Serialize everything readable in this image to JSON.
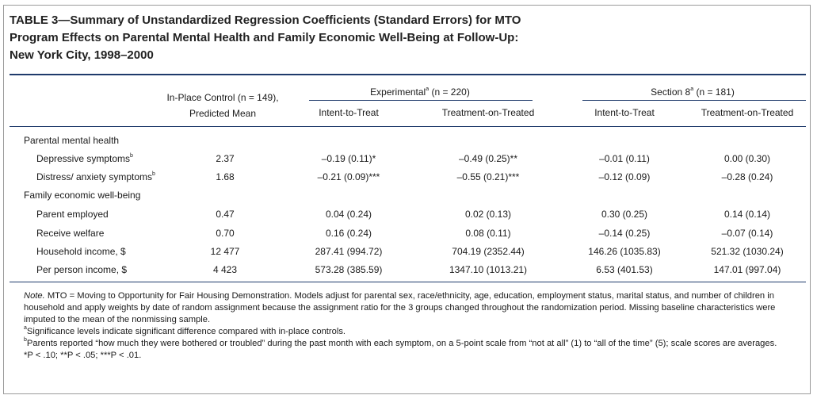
{
  "title": {
    "line1": "TABLE 3—Summary of Unstandardized Regression Coefficients (Standard Errors) for MTO",
    "line2": "Program Effects on Parental Mental Health and Family Economic Well-Being at Follow-Up:",
    "line3": "New York City, 1998–2000"
  },
  "header": {
    "control_line1": "In-Place Control (n = 149),",
    "control_line2": "Predicted Mean",
    "experimental_group": "Experimental",
    "experimental_sup": "a",
    "experimental_n": " (n = 220)",
    "section8_group": "Section 8",
    "section8_sup": "a",
    "section8_n": " (n = 181)",
    "itt": "Intent-to-Treat",
    "tot": "Treatment-on-Treated"
  },
  "sections": [
    {
      "label": "Parental mental health",
      "rows": [
        {
          "label": "Depressive symptoms",
          "sup": "b",
          "control": "2.37",
          "exp_itt": "–0.19 (0.11)*",
          "exp_tot": "–0.49 (0.25)**",
          "s8_itt": "–0.01 (0.11)",
          "s8_tot": "0.00 (0.30)"
        },
        {
          "label": "Distress/ anxiety symptoms",
          "sup": "b",
          "control": "1.68",
          "exp_itt": "–0.21 (0.09)***",
          "exp_tot": "–0.55 (0.21)***",
          "s8_itt": "–0.12 (0.09)",
          "s8_tot": "–0.28 (0.24)"
        }
      ]
    },
    {
      "label": "Family economic well-being",
      "rows": [
        {
          "label": "Parent employed",
          "sup": "",
          "control": "0.47",
          "exp_itt": "0.04 (0.24)",
          "exp_tot": "0.02 (0.13)",
          "s8_itt": "0.30 (0.25)",
          "s8_tot": "0.14 (0.14)"
        },
        {
          "label": "Receive welfare",
          "sup": "",
          "control": "0.70",
          "exp_itt": "0.16 (0.24)",
          "exp_tot": "0.08 (0.11)",
          "s8_itt": "–0.14 (0.25)",
          "s8_tot": "–0.07 (0.14)"
        },
        {
          "label": "Household income, $",
          "sup": "",
          "control": "12 477",
          "exp_itt": "287.41 (994.72)",
          "exp_tot": "704.19 (2352.44)",
          "s8_itt": "146.26 (1035.83)",
          "s8_tot": "521.32 (1030.24)"
        },
        {
          "label": "Per person income, $",
          "sup": "",
          "control": "4 423",
          "exp_itt": "573.28 (385.59)",
          "exp_tot": "1347.10 (1013.21)",
          "s8_itt": "6.53 (401.53)",
          "s8_tot": "147.01 (997.04)"
        }
      ]
    }
  ],
  "notes": {
    "note_label": "Note.",
    "note_line1": " MTO = Moving to Opportunity for Fair Housing Demonstration. Models adjust for parental sex, race/ethnicity, age, education, employment status, marital status, and number of children in",
    "note_line2": "household and apply weights by date of random assignment because the assignment ratio for the 3 groups changed throughout the randomization period. Missing baseline characteristics were",
    "note_line3": "imputed to the mean of the nonmissing sample.",
    "a_sup": "a",
    "a_text": "Significance levels indicate significant difference compared with in-place controls.",
    "b_sup": "b",
    "b_text": "Parents reported “how much they were bothered or troubled” during the past month with each symptom, on a 5-point scale from “not at all” (1) to “all of the time” (5); scale scores are averages.",
    "sig_text": "*P < .10; **P < .05; ***P < .01."
  }
}
